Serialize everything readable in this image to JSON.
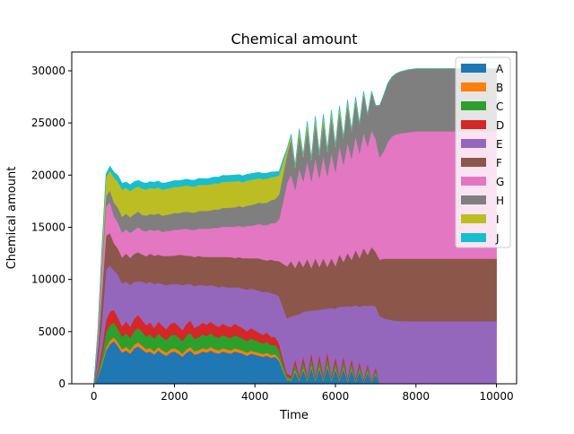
{
  "chart_data": {
    "type": "area",
    "stacked": true,
    "title": "Chemical amount",
    "xlabel": "Time",
    "ylabel": "Chemical amount",
    "xlim": [
      -550,
      10500
    ],
    "ylim": [
      0,
      31800
    ],
    "xticks": [
      0,
      2000,
      4000,
      6000,
      8000,
      10000
    ],
    "yticks": [
      0,
      5000,
      10000,
      15000,
      20000,
      25000,
      30000
    ],
    "legend_position": "top-right",
    "x": [
      0,
      100,
      200,
      300,
      400,
      500,
      600,
      700,
      800,
      900,
      1000,
      1100,
      1200,
      1300,
      1400,
      1500,
      1600,
      1700,
      1800,
      1900,
      2000,
      2100,
      2200,
      2300,
      2400,
      2500,
      2600,
      2700,
      2800,
      2900,
      3000,
      3100,
      3200,
      3300,
      3400,
      3500,
      3600,
      3700,
      3800,
      3900,
      4000,
      4100,
      4200,
      4300,
      4400,
      4500,
      4600,
      4700,
      4800,
      4900,
      5000,
      5100,
      5200,
      5300,
      5400,
      5500,
      5600,
      5700,
      5800,
      5900,
      6000,
      6100,
      6200,
      6300,
      6400,
      6500,
      6600,
      6700,
      6800,
      6900,
      7000,
      7100,
      7200,
      7300,
      7400,
      7500,
      7600,
      7700,
      7800,
      7900,
      8000,
      8100,
      8200,
      8300,
      8400,
      8500,
      8600,
      8700,
      8800,
      8900,
      9000,
      9100,
      9200,
      9300,
      9400,
      9500,
      9600,
      9700,
      9800,
      9900,
      10000
    ],
    "series": [
      {
        "name": "A",
        "color": "#1f77b4",
        "values": [
          0,
          700,
          1800,
          3200,
          3800,
          4100,
          3600,
          3000,
          3200,
          2900,
          3400,
          3600,
          3300,
          3000,
          3100,
          2800,
          3200,
          2900,
          2700,
          3000,
          3100,
          2900,
          2600,
          3000,
          3200,
          2800,
          2900,
          3100,
          3000,
          3200,
          3000,
          2900,
          3100,
          3000,
          2900,
          3100,
          3000,
          2900,
          2700,
          2900,
          2800,
          2700,
          2600,
          2700,
          2500,
          2600,
          2200,
          1200,
          400,
          300,
          1200,
          300,
          1400,
          300,
          1600,
          300,
          1500,
          300,
          1700,
          300,
          1400,
          300,
          1500,
          200,
          1400,
          200,
          1200,
          150,
          1100,
          100,
          900,
          0,
          0,
          0,
          0,
          0,
          0,
          0,
          0,
          0,
          0,
          0,
          0,
          0,
          0,
          0,
          0,
          0,
          0,
          0,
          0,
          0,
          0,
          0,
          0,
          0,
          0,
          0,
          0,
          0,
          0
        ]
      },
      {
        "name": "B",
        "color": "#ff7f0e",
        "values": [
          0,
          80,
          180,
          300,
          350,
          380,
          360,
          320,
          350,
          330,
          360,
          370,
          350,
          330,
          340,
          320,
          340,
          320,
          300,
          320,
          330,
          320,
          300,
          320,
          330,
          310,
          320,
          330,
          320,
          330,
          320,
          310,
          320,
          310,
          300,
          310,
          300,
          290,
          280,
          290,
          280,
          270,
          260,
          270,
          250,
          250,
          220,
          150,
          80,
          60,
          150,
          60,
          160,
          60,
          170,
          60,
          160,
          60,
          170,
          60,
          150,
          60,
          150,
          50,
          140,
          40,
          120,
          30,
          110,
          20,
          90,
          0,
          0,
          0,
          0,
          0,
          0,
          0,
          0,
          0,
          0,
          0,
          0,
          0,
          0,
          0,
          0,
          0,
          0,
          0,
          0,
          0,
          0,
          0,
          0,
          0,
          0,
          0,
          0,
          0,
          0
        ]
      },
      {
        "name": "C",
        "color": "#2ca02c",
        "values": [
          0,
          300,
          800,
          1400,
          1500,
          1400,
          1300,
          1200,
          1300,
          1200,
          1300,
          1400,
          1300,
          1200,
          1300,
          1200,
          1300,
          1250,
          1200,
          1300,
          1300,
          1250,
          1200,
          1300,
          1350,
          1200,
          1250,
          1300,
          1250,
          1300,
          1250,
          1200,
          1250,
          1200,
          1200,
          1250,
          1200,
          1150,
          1100,
          1150,
          1100,
          1050,
          1000,
          1050,
          950,
          900,
          800,
          500,
          250,
          200,
          550,
          200,
          600,
          200,
          650,
          200,
          600,
          200,
          650,
          200,
          550,
          180,
          550,
          150,
          500,
          150,
          450,
          120,
          400,
          100,
          350,
          0,
          0,
          0,
          0,
          0,
          0,
          0,
          0,
          0,
          0,
          0,
          0,
          0,
          0,
          0,
          0,
          0,
          0,
          0,
          0,
          0,
          0,
          0,
          0,
          0,
          0,
          0,
          0,
          0,
          0
        ]
      },
      {
        "name": "D",
        "color": "#d62728",
        "values": [
          0,
          250,
          700,
          1200,
          1300,
          1200,
          1100,
          1000,
          1150,
          1050,
          1200,
          1250,
          1150,
          1100,
          1150,
          1050,
          1150,
          1100,
          1050,
          1150,
          1150,
          1100,
          1050,
          1150,
          1200,
          1050,
          1100,
          1150,
          1100,
          1150,
          1100,
          1050,
          1100,
          1050,
          1050,
          1100,
          1050,
          1000,
          950,
          1000,
          950,
          900,
          850,
          900,
          800,
          750,
          650,
          450,
          250,
          200,
          500,
          200,
          550,
          200,
          600,
          200,
          550,
          200,
          600,
          200,
          500,
          180,
          500,
          150,
          450,
          150,
          400,
          120,
          350,
          100,
          300,
          0,
          0,
          0,
          0,
          0,
          0,
          0,
          0,
          0,
          0,
          0,
          0,
          0,
          0,
          0,
          0,
          0,
          0,
          0,
          0,
          0,
          0,
          0,
          0,
          0,
          0,
          0,
          0,
          0,
          0
        ]
      },
      {
        "name": "E",
        "color": "#9467bd",
        "values": [
          0,
          1000,
          2600,
          4800,
          4400,
          3800,
          4100,
          4100,
          3800,
          4000,
          3500,
          3200,
          3700,
          4000,
          3900,
          4200,
          3700,
          4000,
          4200,
          3800,
          3700,
          4000,
          4300,
          3800,
          3500,
          4000,
          3900,
          3600,
          3700,
          3500,
          3700,
          3800,
          3600,
          3700,
          3800,
          3500,
          3700,
          3800,
          4000,
          3800,
          3900,
          4000,
          4100,
          3900,
          4200,
          4100,
          4500,
          5000,
          5300,
          5700,
          4200,
          5900,
          4200,
          6200,
          4000,
          6300,
          4300,
          6400,
          4100,
          6500,
          4600,
          6700,
          4700,
          6900,
          4900,
          7000,
          5200,
          7100,
          5500,
          7200,
          5800,
          6500,
          6300,
          6200,
          6100,
          6050,
          6020,
          6010,
          6000,
          6000,
          6000,
          6000,
          6000,
          6000,
          6000,
          6000,
          6000,
          6000,
          6000,
          6000,
          6000,
          6000,
          6000,
          6000,
          6000,
          6000,
          6000,
          6000,
          6000,
          6000,
          6000
        ]
      },
      {
        "name": "F",
        "color": "#8c564b",
        "values": [
          0,
          1300,
          2800,
          3300,
          3100,
          2600,
          2500,
          2500,
          2700,
          2600,
          2700,
          2800,
          2600,
          2600,
          2700,
          2700,
          2700,
          2700,
          2800,
          2700,
          2700,
          2800,
          2900,
          2700,
          2700,
          2800,
          2800,
          2700,
          2800,
          2700,
          2800,
          2900,
          2800,
          2900,
          2900,
          2800,
          2900,
          2900,
          3000,
          2900,
          3000,
          3100,
          3100,
          3000,
          3200,
          3200,
          3400,
          4200,
          5000,
          5300,
          4500,
          5200,
          4300,
          5000,
          4100,
          5000,
          4100,
          4900,
          4000,
          4800,
          4100,
          5000,
          4300,
          5100,
          4500,
          5300,
          4700,
          5500,
          4900,
          5600,
          5200,
          5400,
          5700,
          5800,
          5900,
          5950,
          5980,
          5990,
          6000,
          6000,
          6000,
          6000,
          6000,
          6000,
          6000,
          6000,
          6000,
          6000,
          6000,
          6000,
          6000,
          6000,
          6000,
          6000,
          6000,
          6000,
          6000,
          6000,
          6000,
          6000,
          6000
        ]
      },
      {
        "name": "G",
        "color": "#e377c2",
        "values": [
          0,
          900,
          2200,
          2800,
          3000,
          2600,
          2500,
          2400,
          2300,
          2400,
          2300,
          2400,
          2300,
          2400,
          2300,
          2400,
          2400,
          2300,
          2400,
          2400,
          2500,
          2400,
          2500,
          2600,
          2500,
          2600,
          2600,
          2700,
          2700,
          2700,
          2800,
          2800,
          2900,
          2900,
          2900,
          3000,
          3000,
          3000,
          3100,
          3100,
          3200,
          3300,
          3300,
          3400,
          3500,
          3600,
          4000,
          6000,
          8000,
          8300,
          7500,
          8800,
          8200,
          9400,
          8300,
          9600,
          8500,
          9800,
          8700,
          10100,
          9000,
          10400,
          9300,
          10600,
          9700,
          10900,
          10000,
          11100,
          10400,
          11200,
          10800,
          9800,
          10300,
          11200,
          11700,
          11900,
          12000,
          12050,
          12100,
          12150,
          12200,
          12200,
          12200,
          12200,
          12200,
          12200,
          12200,
          12200,
          12200,
          12200,
          12200,
          12200,
          12200,
          12200,
          12200,
          12200,
          12200,
          12200,
          12200,
          12200,
          12200
        ]
      },
      {
        "name": "H",
        "color": "#7f7f7f",
        "values": [
          0,
          300,
          700,
          1000,
          1100,
          1300,
          1400,
          1500,
          1500,
          1500,
          1500,
          1500,
          1500,
          1500,
          1500,
          1550,
          1550,
          1550,
          1550,
          1600,
          1600,
          1600,
          1600,
          1650,
          1650,
          1650,
          1700,
          1700,
          1700,
          1750,
          1750,
          1750,
          1800,
          1800,
          1850,
          1850,
          1900,
          1900,
          1950,
          2000,
          2000,
          2050,
          2100,
          2150,
          2200,
          2300,
          2400,
          2600,
          2700,
          3400,
          2100,
          3200,
          2300,
          3100,
          2000,
          3400,
          2200,
          3300,
          2300,
          3500,
          2400,
          3300,
          2500,
          3600,
          2600,
          3400,
          2800,
          3700,
          3000,
          3600,
          3200,
          5000,
          5400,
          5600,
          5700,
          5800,
          5900,
          5950,
          6000,
          6000,
          6000,
          6000,
          6000,
          6000,
          6000,
          6000,
          6000,
          6000,
          6000,
          6000,
          6000,
          6000,
          6000,
          6000,
          6000,
          6000,
          6000,
          6000,
          6000,
          6000,
          6000
        ]
      },
      {
        "name": "I",
        "color": "#bcbd22",
        "values": [
          0,
          400,
          1300,
          1800,
          1900,
          2400,
          2500,
          2600,
          2500,
          2500,
          2500,
          2400,
          2500,
          2500,
          2500,
          2500,
          2500,
          2500,
          2500,
          2500,
          2500,
          2500,
          2500,
          2500,
          2500,
          2500,
          2500,
          2500,
          2500,
          2500,
          2500,
          2500,
          2500,
          2500,
          2500,
          2500,
          2400,
          2400,
          2400,
          2400,
          2400,
          2350,
          2300,
          2300,
          2200,
          2150,
          1800,
          1200,
          500,
          400,
          200,
          500,
          200,
          600,
          150,
          500,
          150,
          600,
          150,
          500,
          150,
          450,
          100,
          400,
          100,
          300,
          80,
          200,
          60,
          100,
          30,
          0,
          0,
          0,
          0,
          0,
          0,
          0,
          0,
          0,
          0,
          0,
          0,
          0,
          0,
          0,
          0,
          0,
          0,
          0,
          0,
          0,
          0,
          0,
          0,
          0,
          0,
          0,
          0,
          0,
          0
        ]
      },
      {
        "name": "J",
        "color": "#17becf",
        "values": [
          0,
          50,
          150,
          300,
          400,
          500,
          600,
          600,
          550,
          600,
          600,
          580,
          600,
          600,
          580,
          600,
          600,
          600,
          580,
          600,
          600,
          600,
          580,
          600,
          600,
          600,
          600,
          600,
          580,
          600,
          600,
          600,
          600,
          600,
          580,
          600,
          600,
          600,
          600,
          600,
          580,
          550,
          550,
          520,
          500,
          480,
          400,
          250,
          100,
          80,
          40,
          100,
          40,
          120,
          30,
          100,
          30,
          120,
          30,
          100,
          30,
          80,
          20,
          80,
          20,
          60,
          15,
          40,
          10,
          20,
          5,
          0,
          0,
          0,
          0,
          0,
          0,
          0,
          0,
          0,
          0,
          0,
          0,
          0,
          0,
          0,
          0,
          0,
          0,
          0,
          0,
          0,
          0,
          0,
          0,
          0,
          0,
          0,
          0,
          0,
          0
        ]
      }
    ]
  }
}
